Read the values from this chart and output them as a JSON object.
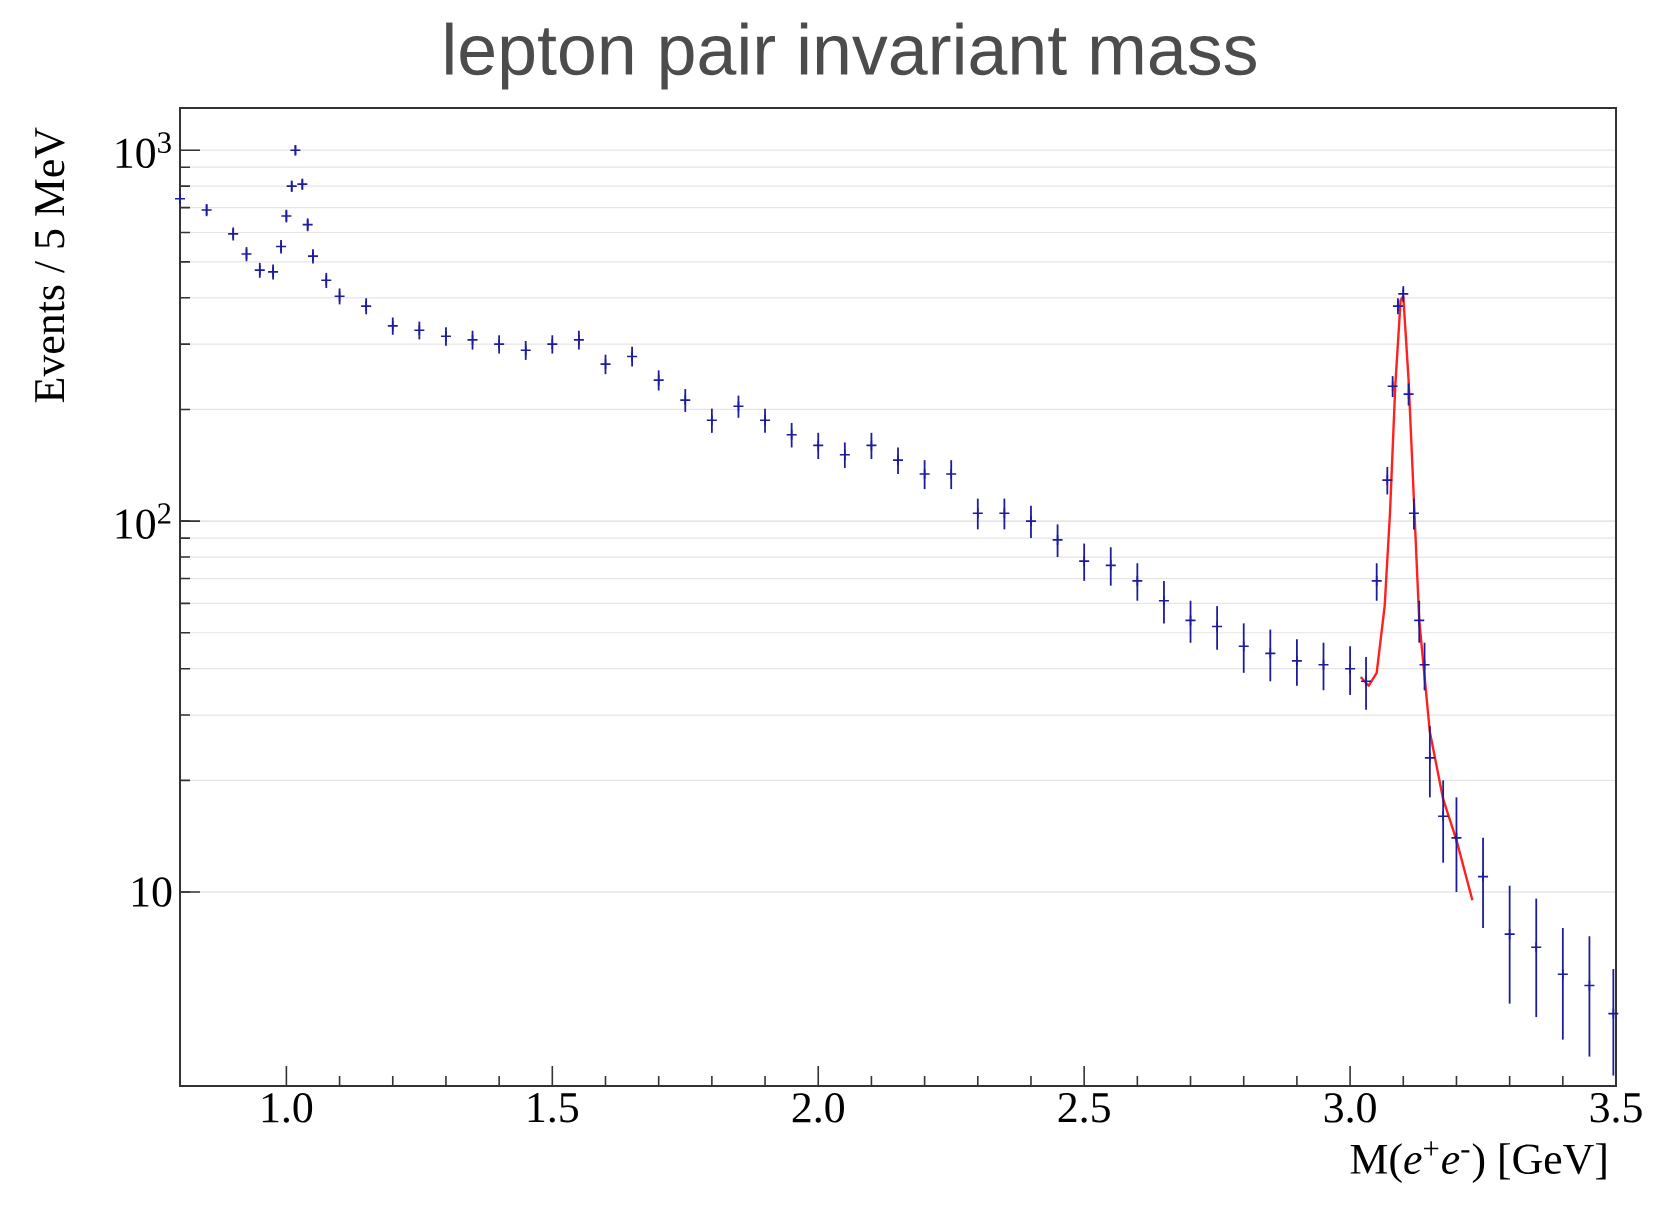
{
  "chart_data": {
    "type": "scatter",
    "title": "lepton pair invariant mass",
    "xlabel": "M(*e*$^{+}$*e*$^{-}$) [GeV]",
    "ylabel": "Events / 5 MeV",
    "log": "y",
    "grid": "y",
    "xlim": [
      0.8,
      3.5
    ],
    "ylim": [
      3,
      1300
    ],
    "xticks": [
      {
        "value": 1.0,
        "label": "1.0"
      },
      {
        "value": 1.5,
        "label": "1.5"
      },
      {
        "value": 2.0,
        "label": "2.0"
      },
      {
        "value": 2.5,
        "label": "2.5"
      },
      {
        "value": 3.0,
        "label": "3.0"
      },
      {
        "value": 3.5,
        "label": "3.5"
      }
    ],
    "yticks": [
      {
        "value": 10,
        "label": "10"
      },
      {
        "value": 100,
        "label": "10$^{2}$"
      },
      {
        "value": 1000,
        "label": "10$^{3}$"
      }
    ],
    "series": [
      {
        "marker": "cross",
        "color": "#1c1c9c",
        "x": [
          0.8,
          0.85,
          0.9,
          0.925,
          0.95,
          0.975,
          0.99,
          1.0,
          1.01,
          1.017,
          1.03,
          1.04,
          1.05,
          1.075,
          1.1,
          1.15,
          1.2,
          1.25,
          1.3,
          1.35,
          1.4,
          1.45,
          1.5,
          1.55,
          1.6,
          1.65,
          1.7,
          1.75,
          1.8,
          1.85,
          1.9,
          1.95,
          2.0,
          2.05,
          2.1,
          2.15,
          2.2,
          2.25,
          2.3,
          2.35,
          2.4,
          2.45,
          2.5,
          2.55,
          2.6,
          2.65,
          2.7,
          2.75,
          2.8,
          2.85,
          2.9,
          2.95,
          3.0,
          3.03,
          3.05,
          3.07,
          3.08,
          3.09,
          3.1,
          3.11,
          3.12,
          3.13,
          3.14,
          3.15,
          3.175,
          3.2,
          3.25,
          3.3,
          3.35,
          3.4,
          3.45,
          3.495
        ],
        "values": [
          740,
          690,
          595,
          525,
          475,
          470,
          550,
          665,
          800,
          1000,
          810,
          630,
          518,
          446,
          404,
          380,
          336,
          327,
          315,
          308,
          300,
          289,
          300,
          308,
          265,
          278,
          240,
          212,
          187,
          204,
          187,
          171,
          160,
          151,
          160,
          146,
          134,
          134,
          105,
          105,
          100,
          89,
          78,
          76,
          69,
          61,
          54,
          52,
          46,
          44,
          42,
          41,
          40,
          37,
          69,
          129,
          231,
          380,
          410,
          220,
          105,
          54,
          41,
          23,
          16,
          14,
          11,
          7.7,
          7.1,
          6,
          5.6,
          4.7
        ],
        "errors": [
          27,
          26,
          24,
          23,
          22,
          22,
          23,
          26,
          28,
          32,
          28,
          25,
          23,
          21,
          20,
          19,
          18,
          18,
          18,
          18,
          17,
          17,
          17,
          18,
          16,
          17,
          15,
          15,
          14,
          14,
          14,
          13,
          13,
          12,
          13,
          12,
          12,
          12,
          10,
          10,
          10,
          9,
          9,
          9,
          8,
          8,
          7,
          7,
          7,
          7,
          6,
          6,
          6,
          6,
          8,
          11,
          15,
          19,
          20,
          15,
          10,
          7,
          6,
          5,
          4,
          4,
          3,
          2.7,
          2.5,
          2,
          2,
          1.5
        ]
      },
      {
        "type": "line",
        "marker": "none",
        "color": "#ff2020",
        "x": [
          3.02,
          3.035,
          3.05,
          3.065,
          3.075,
          3.085,
          3.095,
          3.1,
          3.11,
          3.12,
          3.13,
          3.15,
          3.175,
          3.2,
          3.23
        ],
        "values": [
          38,
          36,
          39,
          59,
          105,
          232,
          394,
          404,
          240,
          114,
          54,
          27,
          17.8,
          13.8,
          9.5
        ]
      }
    ]
  }
}
